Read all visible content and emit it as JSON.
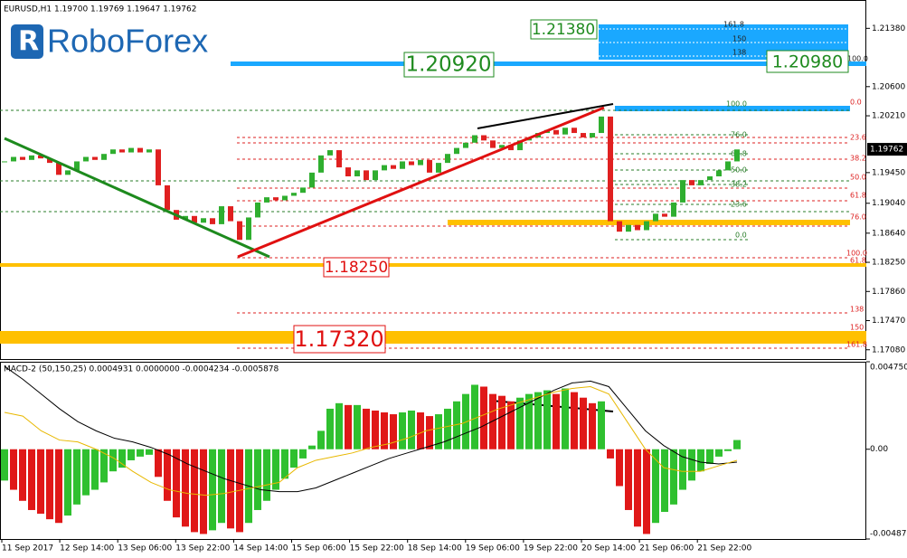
{
  "chart_data": [
    {
      "type": "candlestick",
      "title": "EURUSD,H1  1.19700 1.19769 1.19647 1.19762",
      "logo": "RoboForex",
      "color_up": "#2fae2f",
      "color_down": "#e02020",
      "values": [
        1.196,
        1.1966,
        1.1962,
        1.1968,
        1.1964,
        1.1958,
        1.1942,
        1.1948,
        1.196,
        1.1966,
        1.1962,
        1.197,
        1.1976,
        1.1972,
        1.1978,
        1.1972,
        1.1976,
        1.1928,
        1.1895,
        1.1882,
        1.1887,
        1.1878,
        1.1884,
        1.1876,
        1.19,
        1.188,
        1.1855,
        1.1885,
        1.1905,
        1.1912,
        1.1908,
        1.1914,
        1.1918,
        1.1925,
        1.1945,
        1.1968,
        1.1975,
        1.1952,
        1.194,
        1.1948,
        1.1935,
        1.1948,
        1.1955,
        1.195,
        1.196,
        1.1955,
        1.1962,
        1.1945,
        1.1958,
        1.197,
        1.1978,
        1.1985,
        1.1995,
        1.1988,
        1.1978,
        1.1982,
        1.1975,
        1.1988,
        1.1992,
        1.1998,
        1.2002,
        1.1996,
        1.2005,
        1.1998,
        1.1992,
        1.1998,
        1.202,
        1.188,
        1.1866,
        1.1875,
        1.1868,
        1.188,
        1.189,
        1.1886,
        1.1905,
        1.1935,
        1.1928,
        1.1935,
        1.194,
        1.1948,
        1.196,
        1.1976
      ],
      "ylim": [
        1.16944,
        1.21759
      ],
      "yticks": [
        {
          "value": 1.2138,
          "label": "1.21380"
        },
        {
          "value": 1.206,
          "label": "1.20600"
        },
        {
          "value": 1.2021,
          "label": "1.20210"
        },
        {
          "value": 1.1945,
          "label": "1.19450"
        },
        {
          "value": 1.1904,
          "label": "1.19040"
        },
        {
          "value": 1.1864,
          "label": "1.18640"
        },
        {
          "value": 1.1825,
          "label": "1.18250"
        },
        {
          "value": 1.1786,
          "label": "1.17860"
        },
        {
          "value": 1.1747,
          "label": "1.17470"
        },
        {
          "value": 1.1708,
          "label": "1.17080"
        }
      ],
      "last_price": {
        "value": 1.19762,
        "label": "1.19762"
      },
      "xtick_labels": [
        "11 Sep 2017",
        "12 Sep 14:00",
        "13 Sep 06:00",
        "13 Sep 22:00",
        "14 Sep 14:00",
        "15 Sep 06:00",
        "15 Sep 22:00",
        "18 Sep 14:00",
        "19 Sep 06:00",
        "19 Sep 22:00",
        "20 Sep 14:00",
        "21 Sep 06:00",
        "21 Sep 22:00"
      ],
      "annotations": [
        {
          "value": 1.2138,
          "label": "1.21380"
        },
        {
          "value": 1.2092,
          "label": "1.20920"
        },
        {
          "value": 1.2098,
          "label": "1.20980"
        },
        {
          "value": 1.1825,
          "label": "1.18250"
        },
        {
          "value": 1.1732,
          "label": "1.17320"
        }
      ],
      "fib_blue": [
        "161.8",
        "150",
        "138",
        "100.0"
      ],
      "fib_red": [
        "0.0",
        "23.6",
        "38.2",
        "50.0",
        "61.8",
        "76.0",
        "100.0",
        "61.8",
        "138",
        "150",
        "161.8"
      ],
      "fib_green": [
        "100.0",
        "76.0",
        "61.8",
        "50.0",
        "38.2",
        "23.6",
        "0.0"
      ]
    },
    {
      "type": "bar",
      "title": "MACD-2 (50,150,25) 0.0004931 0.0000000 -0.0004234 -0.0005878",
      "color_up": "#2fc02f",
      "color_down": "#e01818",
      "values": [
        -0.0017,
        -0.0022,
        -0.0028,
        -0.0033,
        -0.0035,
        -0.0038,
        -0.004,
        -0.0036,
        -0.003,
        -0.0025,
        -0.0022,
        -0.0018,
        -0.0012,
        -0.001,
        -0.0006,
        -0.0004,
        -0.0003,
        -0.0015,
        -0.0028,
        -0.0037,
        -0.0042,
        -0.0045,
        -0.0046,
        -0.0044,
        -0.004,
        -0.0043,
        -0.0045,
        -0.004,
        -0.0033,
        -0.0028,
        -0.0022,
        -0.0016,
        -0.001,
        -0.0005,
        0.0002,
        0.001,
        0.0022,
        0.0025,
        0.0024,
        0.0024,
        0.0022,
        0.0021,
        0.002,
        0.0019,
        0.002,
        0.0021,
        0.002,
        0.0018,
        0.0019,
        0.0022,
        0.0026,
        0.003,
        0.0035,
        0.0034,
        0.003,
        0.0029,
        0.0026,
        0.0028,
        0.003,
        0.0031,
        0.0032,
        0.003,
        0.0033,
        0.0031,
        0.0028,
        0.0025,
        0.0026,
        -0.0005,
        -0.002,
        -0.0033,
        -0.0042,
        -0.0046,
        -0.004,
        -0.0034,
        -0.003,
        -0.0022,
        -0.0017,
        -0.0012,
        -0.0008,
        -0.0004,
        -0.0001,
        0.0005
      ],
      "lines": [
        {
          "color": "#000000",
          "values": [
            0.0045,
            0.0038,
            0.003,
            0.0022,
            0.0015,
            0.001,
            0.0006,
            0.0004,
            0.0001,
            -0.0003,
            -0.0008,
            -0.0012,
            -0.0016,
            -0.0019,
            -0.0022,
            -0.0023,
            -0.0023,
            -0.0021,
            -0.0017,
            -0.0013,
            -0.0009,
            -0.0005,
            -0.0002,
            0.0001,
            0.0004,
            0.0008,
            0.0012,
            0.0017,
            0.0022,
            0.0027,
            0.0032,
            0.0036,
            0.0037,
            0.0034,
            0.0022,
            0.001,
            0.0002,
            -0.0004,
            -0.0007,
            -0.0008,
            -0.0007
          ]
        },
        {
          "color": "#e8b800",
          "values": [
            0.002,
            0.0018,
            0.001,
            0.0005,
            0.0004,
            0.0,
            -0.0005,
            -0.0012,
            -0.0018,
            -0.0022,
            -0.0024,
            -0.0025,
            -0.0024,
            -0.0022,
            -0.002,
            -0.0018,
            -0.001,
            -0.0006,
            -0.0004,
            -0.0002,
            0.0001,
            0.0003,
            0.0006,
            0.001,
            0.0012,
            0.0014,
            0.0018,
            0.0022,
            0.0025,
            0.0028,
            0.0031,
            0.0033,
            0.0034,
            0.003,
            0.0015,
            0.0,
            -0.001,
            -0.0012,
            -0.0012,
            -0.0009,
            -0.0006
          ]
        }
      ],
      "ylim": [
        -0.004873,
        0.00475
      ],
      "yticks": [
        {
          "value": 0.00475,
          "label": "0.004750"
        },
        {
          "value": 0,
          "label": "0.00"
        },
        {
          "value": -0.004873,
          "label": "-0.004873"
        }
      ]
    }
  ]
}
